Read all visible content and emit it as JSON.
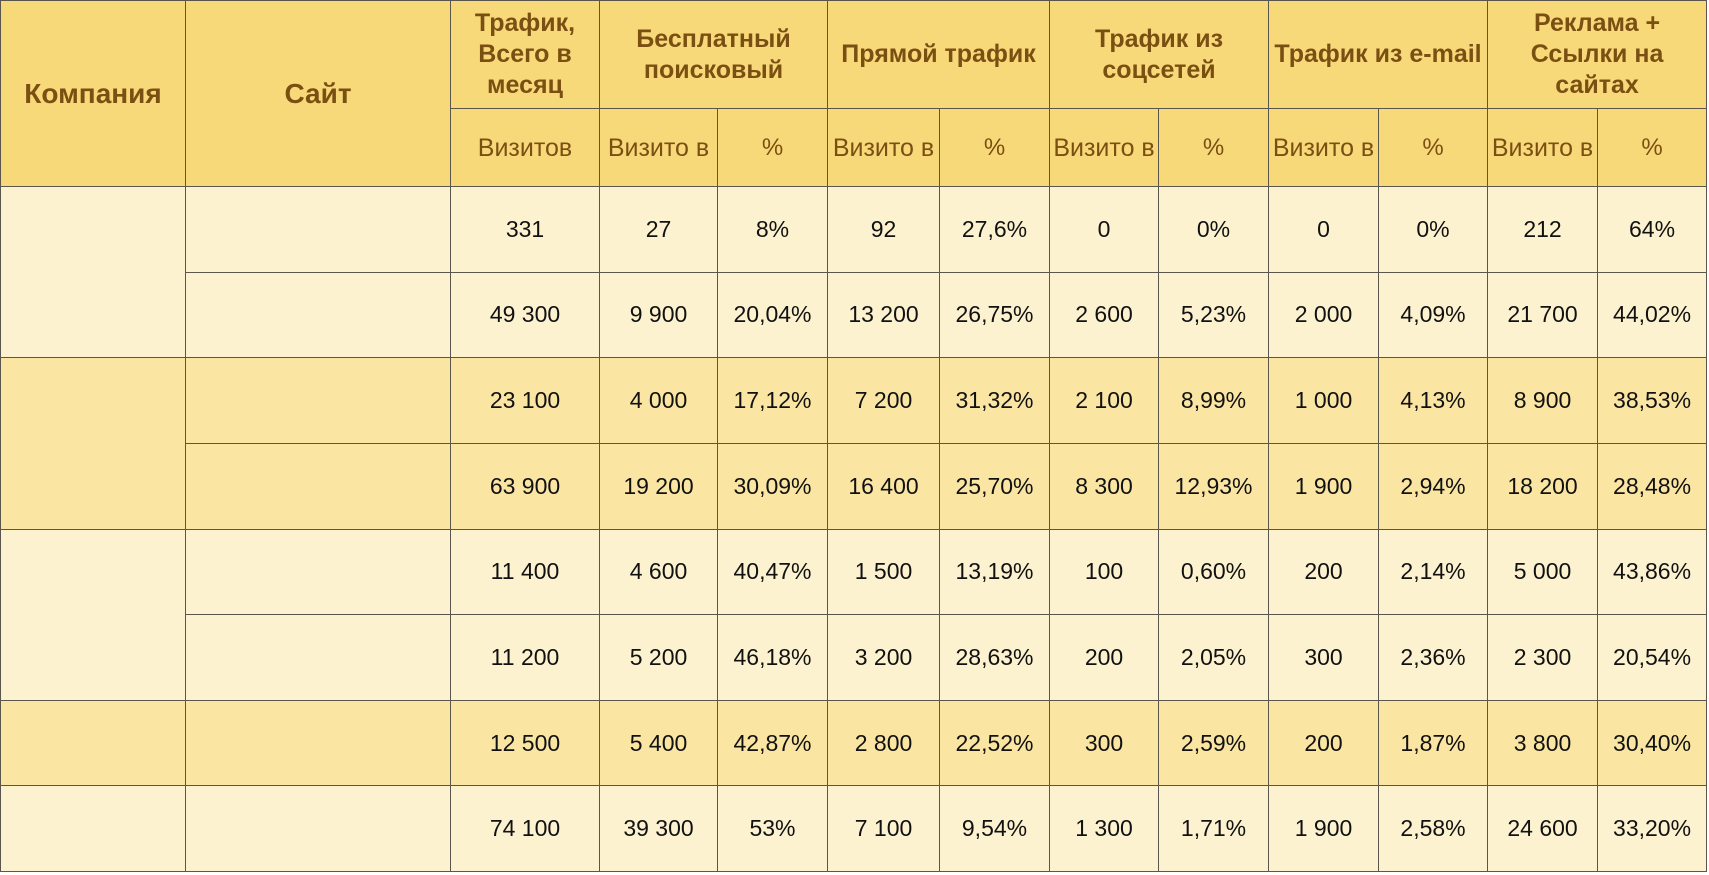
{
  "table": {
    "headers": {
      "company": "Компания",
      "site": "Сайт",
      "groups": [
        "Трафик, Всего в месяц",
        "Бесплатный поисковый",
        "Прямой трафик",
        "Трафик из соцсетей",
        "Трафик из e-mail",
        "Реклама + Ссылки на сайтах"
      ],
      "visits_total": "Визитов",
      "visits_split": "Визито в",
      "percent": "%"
    },
    "companies": [
      "",
      "",
      "",
      "",
      ""
    ],
    "sites": [
      "",
      "",
      "",
      "",
      "",
      "",
      "",
      ""
    ],
    "rows": [
      [
        "331",
        "27",
        "8%",
        "92",
        "27,6%",
        "0",
        "0%",
        "0",
        "0%",
        "212",
        "64%"
      ],
      [
        "49 300",
        "9 900",
        "20,04%",
        "13 200",
        "26,75%",
        "2 600",
        "5,23%",
        "2 000",
        "4,09%",
        "21 700",
        "44,02%"
      ],
      [
        "23 100",
        "4 000",
        "17,12%",
        "7 200",
        "31,32%",
        "2 100",
        "8,99%",
        "1 000",
        "4,13%",
        "8 900",
        "38,53%"
      ],
      [
        "63 900",
        "19 200",
        "30,09%",
        "16 400",
        "25,70%",
        "8 300",
        "12,93%",
        "1 900",
        "2,94%",
        "18 200",
        "28,48%"
      ],
      [
        "11 400",
        "4 600",
        "40,47%",
        "1 500",
        "13,19%",
        "100",
        "0,60%",
        "200",
        "2,14%",
        "5 000",
        "43,86%"
      ],
      [
        "11 200",
        "5 200",
        "46,18%",
        "3 200",
        "28,63%",
        "200",
        "2,05%",
        "300",
        "2,36%",
        "2 300",
        "20,54%"
      ],
      [
        "12 500",
        "5 400",
        "42,87%",
        "2 800",
        "22,52%",
        "300",
        "2,59%",
        "200",
        "1,87%",
        "3 800",
        "30,40%"
      ],
      [
        "74 100",
        "39 300",
        "53%",
        "7 100",
        "9,54%",
        "1 300",
        "1,71%",
        "1 900",
        "2,58%",
        "24 600",
        "33,20%"
      ]
    ]
  }
}
